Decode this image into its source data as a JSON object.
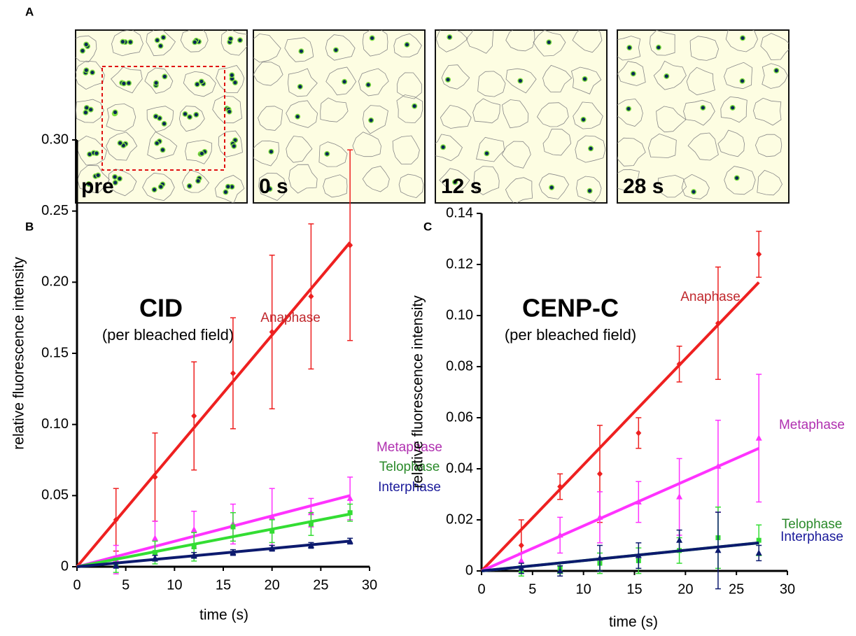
{
  "panel_a": {
    "label": "A",
    "images": [
      "pre",
      "0 s",
      "12 s",
      "28 s"
    ]
  },
  "chart_data": [
    {
      "type": "line",
      "panel_label": "B",
      "title": "CID",
      "subtitle": "(per bleached field)",
      "x_label": "time (s)",
      "y_label": "relative fluorescence intensity",
      "xlim": [
        0,
        30
      ],
      "xticks": [
        0,
        5,
        10,
        15,
        20,
        25,
        30
      ],
      "ylim": [
        0,
        0.3
      ],
      "yticks": [
        0,
        0.05,
        {
          "value": 0.1,
          "label": "0.10"
        },
        0.15,
        {
          "value": 0.2,
          "label": "0.20"
        },
        0.25,
        {
          "value": 0.3,
          "label": "0.30"
        }
      ],
      "x": [
        4,
        8,
        12,
        16,
        20,
        24,
        28
      ],
      "fit_x": [
        0,
        28
      ],
      "series": [
        {
          "name": "Anaphase",
          "color": "#ee2020",
          "label_color": "#c0282d",
          "marker": "diamond",
          "values": [
            0.033,
            0.063,
            0.106,
            0.136,
            0.165,
            0.19,
            0.226
          ],
          "errors": [
            0.022,
            0.031,
            0.038,
            0.039,
            0.054,
            0.051,
            0.067
          ],
          "fit_values": [
            0,
            0.228
          ]
        },
        {
          "name": "Metaphase",
          "color": "#ff33ff",
          "label_color": "#b030b0",
          "marker": "triangle",
          "values": [
            0.005,
            0.02,
            0.026,
            0.03,
            0.035,
            0.038,
            0.048
          ],
          "errors": [
            0.01,
            0.012,
            0.013,
            0.014,
            0.02,
            0.01,
            0.015
          ],
          "fit_values": [
            0,
            0.05
          ]
        },
        {
          "name": "Telophase",
          "color": "#33dd33",
          "label_color": "#2a8a2a",
          "marker": "square",
          "values": [
            0.001,
            0.01,
            0.014,
            0.028,
            0.025,
            0.03,
            0.038
          ],
          "errors": [
            0.005,
            0.008,
            0.01,
            0.01,
            0.008,
            0.008,
            0.006
          ],
          "fit_values": [
            0,
            0.037
          ]
        },
        {
          "name": "Interphase",
          "color": "#0c1a6e",
          "label_color": "#1a1a9a",
          "marker": "triangle",
          "values": [
            0.001,
            0.006,
            0.008,
            0.01,
            0.013,
            0.015,
            0.018
          ],
          "errors": [
            0.002,
            0.002,
            0.002,
            0.002,
            0.002,
            0.002,
            0.002
          ],
          "fit_values": [
            0,
            0.018
          ]
        }
      ]
    },
    {
      "type": "line",
      "panel_label": "C",
      "title": "CENP-C",
      "subtitle": "(per bleached field)",
      "x_label": "time (s)",
      "y_label": "relative fluorescence intensity",
      "xlim": [
        0,
        30
      ],
      "xticks": [
        0,
        5,
        10,
        15,
        20,
        25,
        30
      ],
      "ylim": [
        0,
        0.14
      ],
      "yticks": [
        0,
        0.02,
        0.04,
        0.06,
        0.08,
        {
          "value": 0.1,
          "label": "0.10"
        },
        0.12,
        0.14
      ],
      "x": [
        3.9,
        7.7,
        11.6,
        15.4,
        19.4,
        23.2,
        27.2
      ],
      "fit_x": [
        0,
        27.2
      ],
      "series": [
        {
          "name": "Anaphase",
          "color": "#ee2020",
          "label_color": "#c0282d",
          "marker": "diamond",
          "values": [
            0.01,
            0.033,
            0.038,
            0.054,
            0.081,
            0.097,
            0.124
          ],
          "errors": [
            0.01,
            0.005,
            0.019,
            0.006,
            0.007,
            0.022,
            0.009
          ],
          "fit_values": [
            0,
            0.113
          ]
        },
        {
          "name": "Metaphase",
          "color": "#ff33ff",
          "label_color": "#b030b0",
          "marker": "triangle",
          "values": [
            0.004,
            0.014,
            0.021,
            0.027,
            0.029,
            0.041,
            0.052
          ],
          "errors": [
            0.003,
            0.007,
            0.01,
            0.008,
            0.015,
            0.018,
            0.025
          ],
          "fit_values": [
            0,
            0.048
          ]
        },
        {
          "name": "Telophase",
          "color": "#33dd33",
          "label_color": "#2a8a2a",
          "marker": "square",
          "values": [
            0,
            0.001,
            0.003,
            0.004,
            0.008,
            0.013,
            0.012
          ],
          "errors": [
            0.002,
            0.002,
            0.004,
            0.005,
            0.005,
            0.012,
            0.006
          ],
          "fit_values": [
            0,
            0.011
          ]
        },
        {
          "name": "Interphase",
          "color": "#0c1a6e",
          "label_color": "#1a1a9a",
          "marker": "triangle",
          "values": [
            0.001,
            0,
            0.005,
            0.006,
            0.012,
            0.008,
            0.007
          ],
          "errors": [
            0.002,
            0.002,
            0.005,
            0.005,
            0.004,
            0.015,
            0.003
          ],
          "fit_values": [
            0,
            0.011
          ]
        }
      ]
    }
  ]
}
